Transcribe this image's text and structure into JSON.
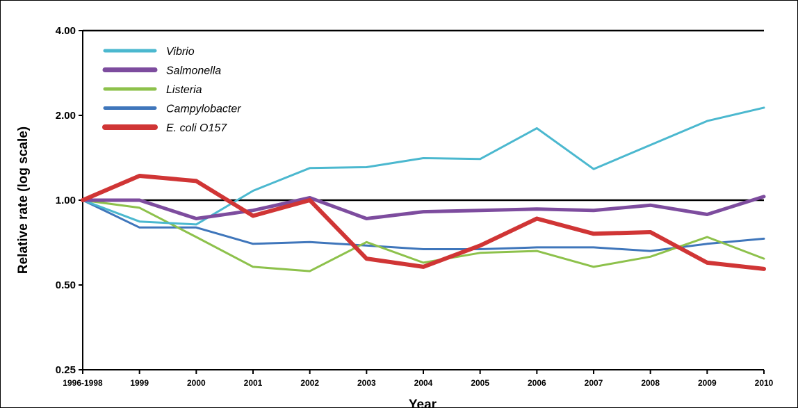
{
  "chart_data": {
    "type": "line",
    "title": "",
    "xlabel": "Year",
    "ylabel": "Relative rate (log scale)",
    "yscale": "log",
    "ylim": [
      0.25,
      4.0
    ],
    "yticks": [
      "0.25",
      "0.50",
      "1.00",
      "2.00",
      "4.00"
    ],
    "ytick_values": [
      0.25,
      0.5,
      1.0,
      2.0,
      4.0
    ],
    "categories": [
      "1996-1998",
      "1999",
      "2000",
      "2001",
      "2002",
      "2003",
      "2004",
      "2005",
      "2006",
      "2007",
      "2008",
      "2009",
      "2010"
    ],
    "reference_line": 1.0,
    "legend_position": "top-left",
    "series": [
      {
        "name": "Vibrio",
        "color": "#4bb8cf",
        "width": 3,
        "values": [
          1.0,
          0.84,
          0.82,
          1.08,
          1.3,
          1.31,
          1.41,
          1.4,
          1.8,
          1.29,
          1.57,
          1.91,
          2.13
        ]
      },
      {
        "name": "Salmonella",
        "color": "#7d4c9e",
        "width": 5,
        "values": [
          1.0,
          1.0,
          0.86,
          0.92,
          1.02,
          0.86,
          0.91,
          0.92,
          0.93,
          0.92,
          0.96,
          0.89,
          1.03
        ]
      },
      {
        "name": "Listeria",
        "color": "#8dc14b",
        "width": 3,
        "values": [
          1.0,
          0.94,
          0.74,
          0.58,
          0.56,
          0.71,
          0.6,
          0.65,
          0.66,
          0.58,
          0.63,
          0.74,
          0.62
        ]
      },
      {
        "name": "Campylobacter",
        "color": "#3f76bb",
        "width": 3,
        "values": [
          1.0,
          0.8,
          0.8,
          0.7,
          0.71,
          0.69,
          0.67,
          0.67,
          0.68,
          0.68,
          0.66,
          0.7,
          0.73
        ]
      },
      {
        "name": "E. coli O157",
        "color": "#d03535",
        "width": 6,
        "values": [
          1.0,
          1.22,
          1.17,
          0.88,
          1.0,
          0.62,
          0.58,
          0.69,
          0.86,
          0.76,
          0.77,
          0.6,
          0.57
        ]
      }
    ]
  }
}
